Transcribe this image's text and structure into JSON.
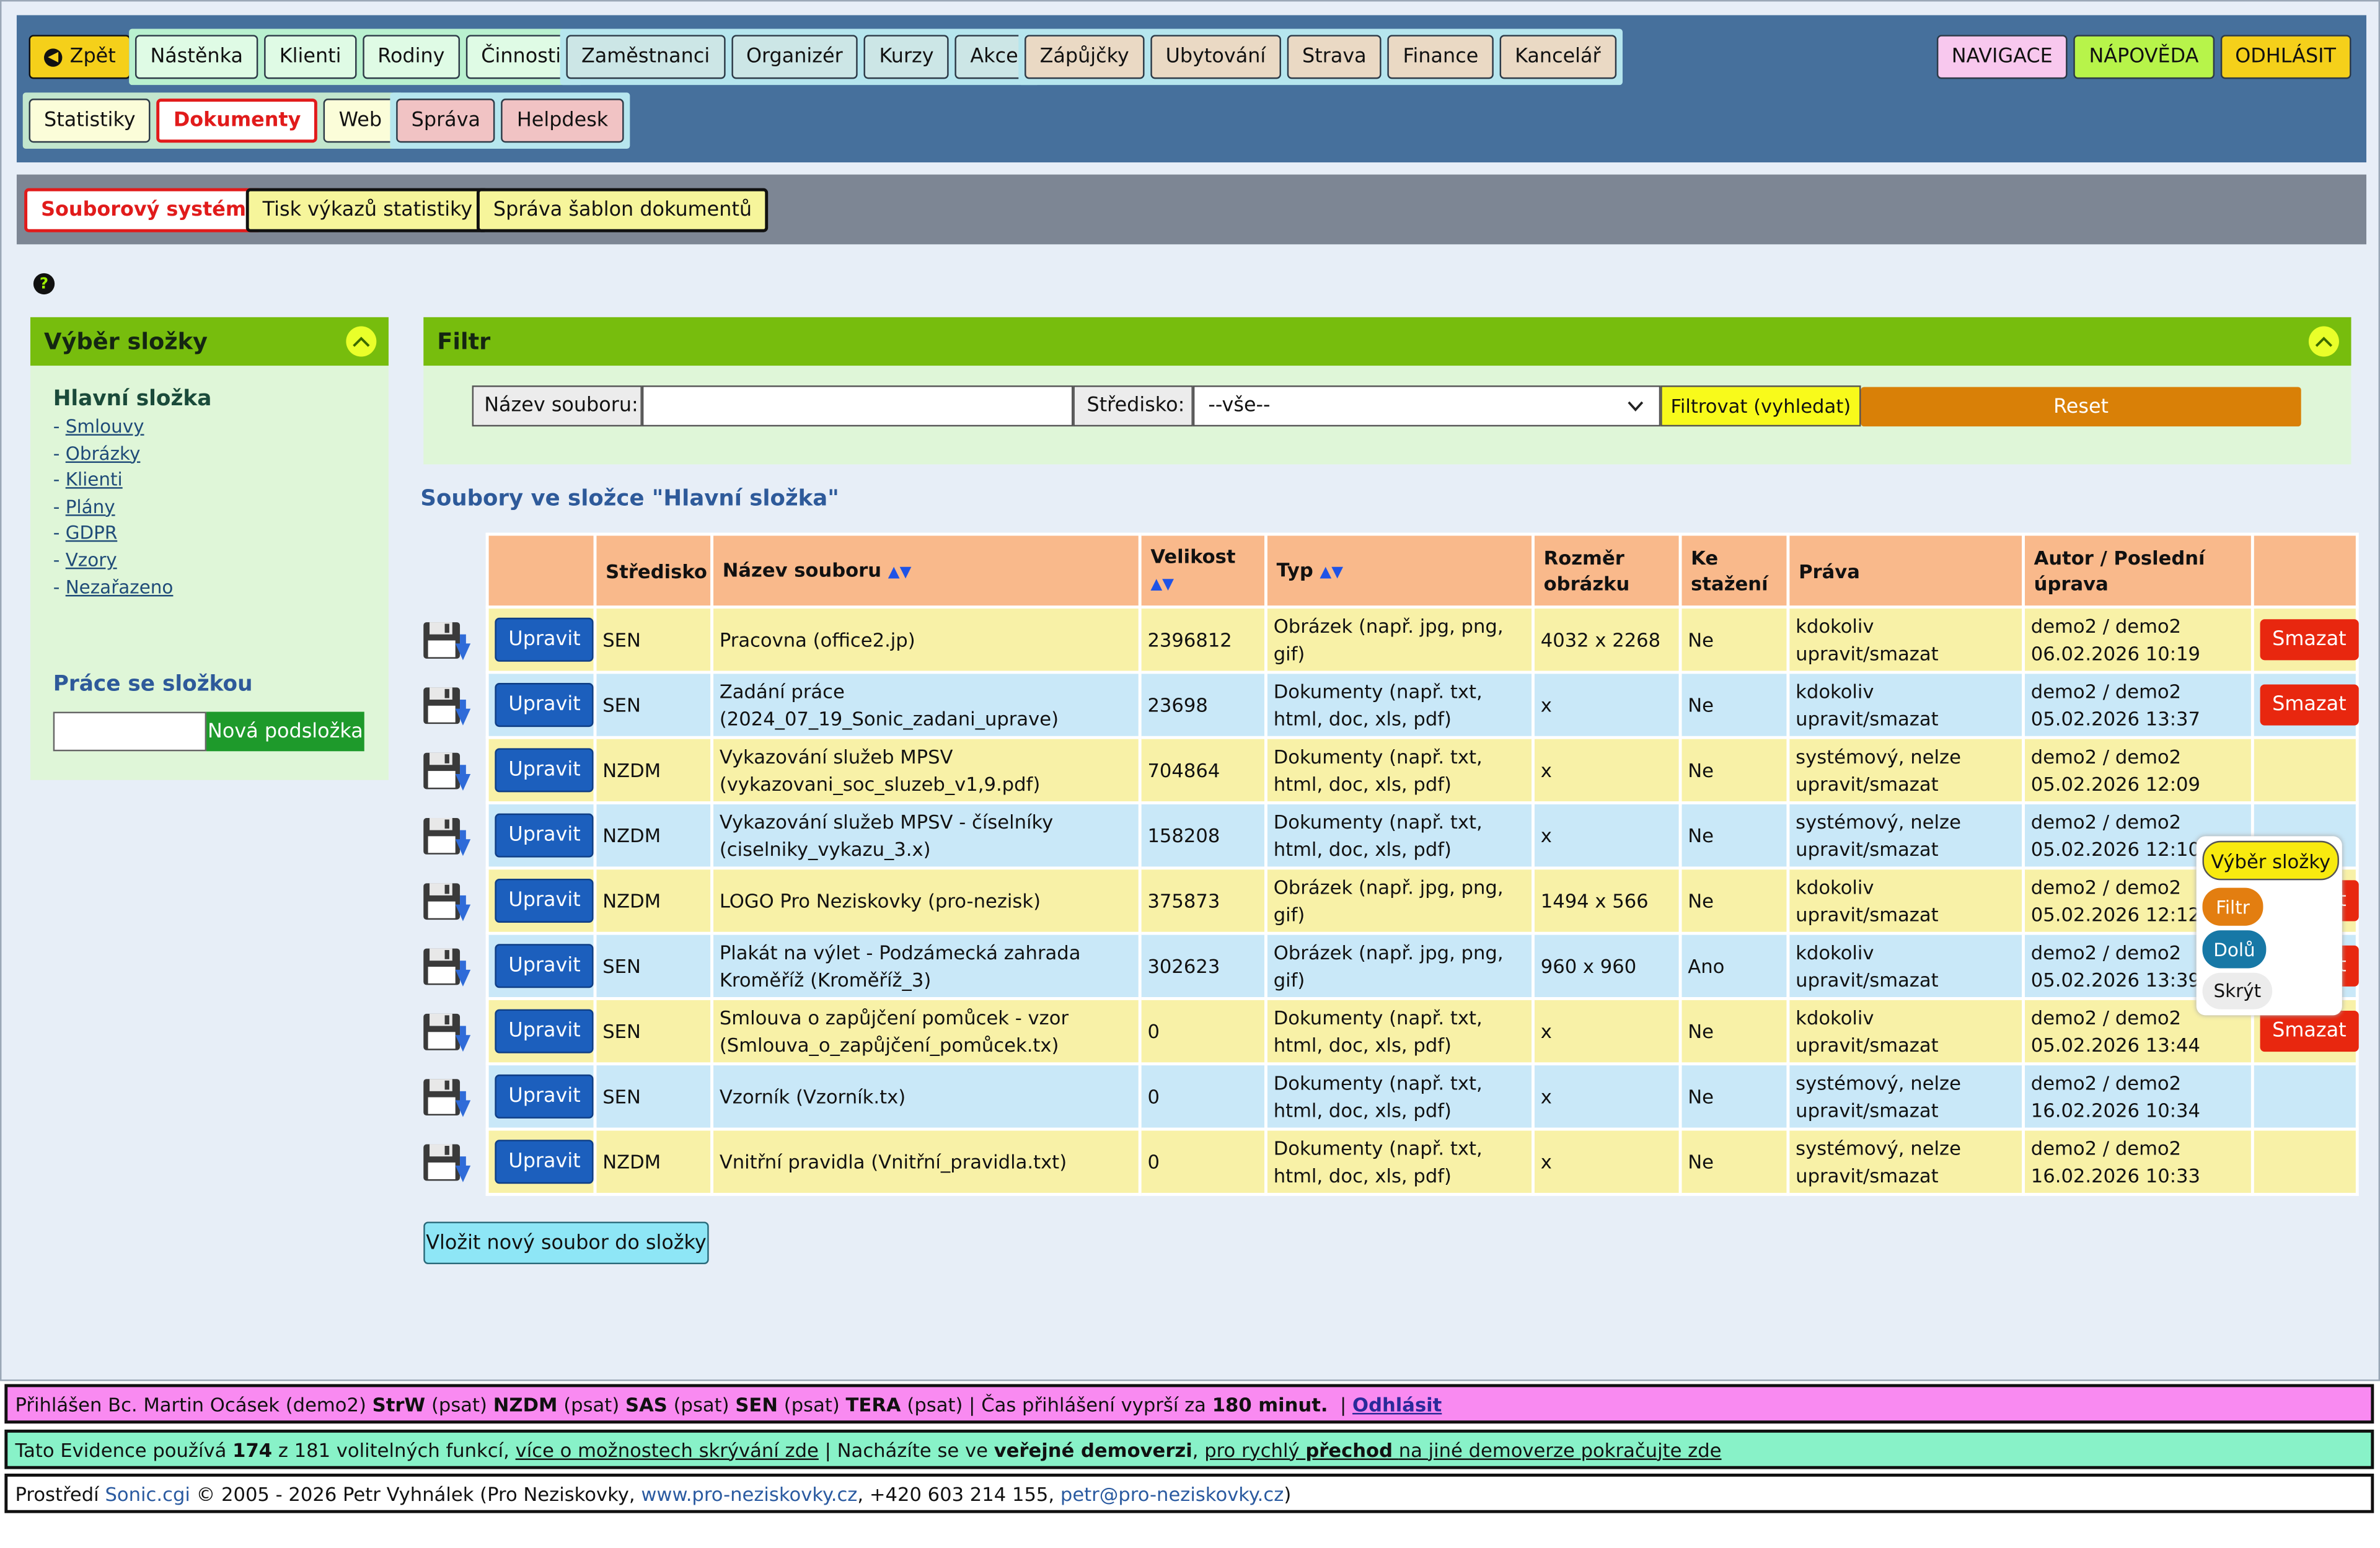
{
  "topnav": {
    "back_label": "Zpět",
    "group1": [
      "Nástěnka",
      "Klienti",
      "Rodiny",
      "Činnosti"
    ],
    "group2": [
      "Zaměstnanci",
      "Organizér",
      "Kurzy",
      "Akce"
    ],
    "group3": [
      "Zápůjčky",
      "Ubytování",
      "Strava",
      "Finance",
      "Kancelář"
    ],
    "group4": [
      "Statistiky",
      "Dokumenty",
      "Web"
    ],
    "group5": [
      "Správa",
      "Helpdesk"
    ],
    "right": [
      "NAVIGACE",
      "NÁPOVĚDA",
      "ODHLÁSIT"
    ]
  },
  "subnav": [
    "Souborový systém",
    "Tisk výkazů statistiky",
    "Správa šablon dokumentů"
  ],
  "folders": {
    "title": "Výběr složky",
    "root": "Hlavní složka",
    "items": [
      "Smlouvy",
      "Obrázky",
      "Klienti",
      "Plány",
      "GDPR",
      "Vzory",
      "Nezařazeno"
    ],
    "work_title": "Práce se složkou",
    "new_subfolder_label": "Nová podsložka",
    "new_subfolder_value": ""
  },
  "filter": {
    "title": "Filtr",
    "filename_label": "Název souboru:",
    "filename_value": "",
    "center_label": "Středisko:",
    "center_value": "--vše--",
    "search_label": "Filtrovat (vyhledat)",
    "reset_label": "Reset"
  },
  "files": {
    "heading": "Soubory ve složce \"Hlavní složka\"",
    "columns": [
      "",
      "Středisko",
      "Název souboru",
      "Velikost",
      "Typ",
      "Rozměr obrázku",
      "Ke stažení",
      "Práva",
      "Autor / Poslední úprava",
      ""
    ],
    "edit_label": "Upravit",
    "delete_label": "Smazat",
    "rows": [
      {
        "center": "SEN",
        "name": "Pracovna (office2.jp)",
        "size": "2396812",
        "type": "Obrázek (např. jpg, png, gif)",
        "dim": "4032 x 2268",
        "download": "Ne",
        "rights": "kdokoliv upravit/smazat",
        "author": "demo2 / demo2",
        "date": "06.02.2026 10:19",
        "deletable": true
      },
      {
        "center": "SEN",
        "name": "Zadání práce (2024_07_19_Sonic_zadani_uprave)",
        "size": "23698",
        "type": "Dokumenty (např. txt, html, doc, xls, pdf)",
        "dim": "x",
        "download": "Ne",
        "rights": "kdokoliv upravit/smazat",
        "author": "demo2 / demo2",
        "date": "05.02.2026 13:37",
        "deletable": true
      },
      {
        "center": "NZDM",
        "name": "Vykazování služeb MPSV (vykazovani_soc_sluzeb_v1,9.pdf)",
        "size": "704864",
        "type": "Dokumenty (např. txt, html, doc, xls, pdf)",
        "dim": "x",
        "download": "Ne",
        "rights": "systémový, nelze upravit/smazat",
        "author": "demo2 / demo2",
        "date": "05.02.2026 12:09",
        "deletable": false
      },
      {
        "center": "NZDM",
        "name": "Vykazování služeb MPSV - číselníky (ciselniky_vykazu_3.x)",
        "size": "158208",
        "type": "Dokumenty (např. txt, html, doc, xls, pdf)",
        "dim": "x",
        "download": "Ne",
        "rights": "systémový, nelze upravit/smazat",
        "author": "demo2 / demo2",
        "date": "05.02.2026 12:10",
        "deletable": false
      },
      {
        "center": "NZDM",
        "name": "LOGO Pro Neziskovky (pro-nezisk)",
        "size": "375873",
        "type": "Obrázek (např. jpg, png, gif)",
        "dim": "1494 x 566",
        "download": "Ne",
        "rights": "kdokoliv upravit/smazat",
        "author": "demo2 / demo2",
        "date": "05.02.2026 12:12",
        "deletable": true
      },
      {
        "center": "SEN",
        "name": "Plakát na výlet - Podzámecká zahrada Kroměříž (Kroměříž_3)",
        "size": "302623",
        "type": "Obrázek (např. jpg, png, gif)",
        "dim": "960 x 960",
        "download": "Ano",
        "rights": "kdokoliv upravit/smazat",
        "author": "demo2 / demo2",
        "date": "05.02.2026 13:39",
        "deletable": true
      },
      {
        "center": "SEN",
        "name": "Smlouva o zapůjčení pomůcek - vzor (Smlouva_o_zapůjčení_pomůcek.tx)",
        "size": "0",
        "type": "Dokumenty (např. txt, html, doc, xls, pdf)",
        "dim": "x",
        "download": "Ne",
        "rights": "kdokoliv upravit/smazat",
        "author": "demo2 / demo2",
        "date": "05.02.2026 13:44",
        "deletable": true
      },
      {
        "center": "SEN",
        "name": "Vzorník (Vzorník.tx)",
        "size": "0",
        "type": "Dokumenty (např. txt, html, doc, xls, pdf)",
        "dim": "x",
        "download": "Ne",
        "rights": "systémový, nelze upravit/smazat",
        "author": "demo2 / demo2",
        "date": "16.02.2026 10:34",
        "deletable": false
      },
      {
        "center": "NZDM",
        "name": "Vnitřní pravidla (Vnitřní_pravidla.txt)",
        "size": "0",
        "type": "Dokumenty (např. txt, html, doc, xls, pdf)",
        "dim": "x",
        "download": "Ne",
        "rights": "systémový, nelze upravit/smazat",
        "author": "demo2 / demo2",
        "date": "16.02.2026 10:33",
        "deletable": false
      }
    ],
    "upload_label": "Vložit nový soubor do složky"
  },
  "floating": [
    "Výběr složky",
    "Filtr",
    "Dolů",
    "Skrýt"
  ],
  "footer": {
    "login_prefix": "Přihlášen Bc. Martin Ocásek (demo2)",
    "units": [
      {
        "code": "StrW",
        "perm": "(psat)"
      },
      {
        "code": "NZDM",
        "perm": "(psat)"
      },
      {
        "code": "SAS",
        "perm": "(psat)"
      },
      {
        "code": "SEN",
        "perm": "(psat)"
      },
      {
        "code": "TERA",
        "perm": "(psat)"
      }
    ],
    "session_text": "Čas přihlášení vyprší za",
    "session_value": "180 minut.",
    "logout": "Odhlásit",
    "features_prefix": "Tato Evidence používá",
    "features_count": "174",
    "features_suffix": "z 181 volitelných funkcí,",
    "features_link": "více o možnostech skrývání zde",
    "public_prefix": "Nacházíte se ve",
    "public_bold": "veřejné demoverzi",
    "switch_pre": "pro rychlý",
    "switch_bold": "přechod",
    "switch_post": "na jiné demoverze pokračujte zde",
    "env_prefix": "Prostředí",
    "env_app": "Sonic.cgi",
    "env_copy": "© 2005 - 2026 Petr Vyhnálek (Pro Neziskovky,",
    "env_site": "www.pro-neziskovky.cz",
    "env_phone": ", +420 603 214 155,",
    "env_mail": "petr@pro-neziskovky.cz",
    "env_close": ")"
  },
  "colors": {
    "accent_green": "#77bd0d",
    "nav_blue": "#46709c",
    "header_orange": "#f9b98b",
    "edit_blue": "#1c5fbd",
    "delete_red": "#e8270f"
  }
}
